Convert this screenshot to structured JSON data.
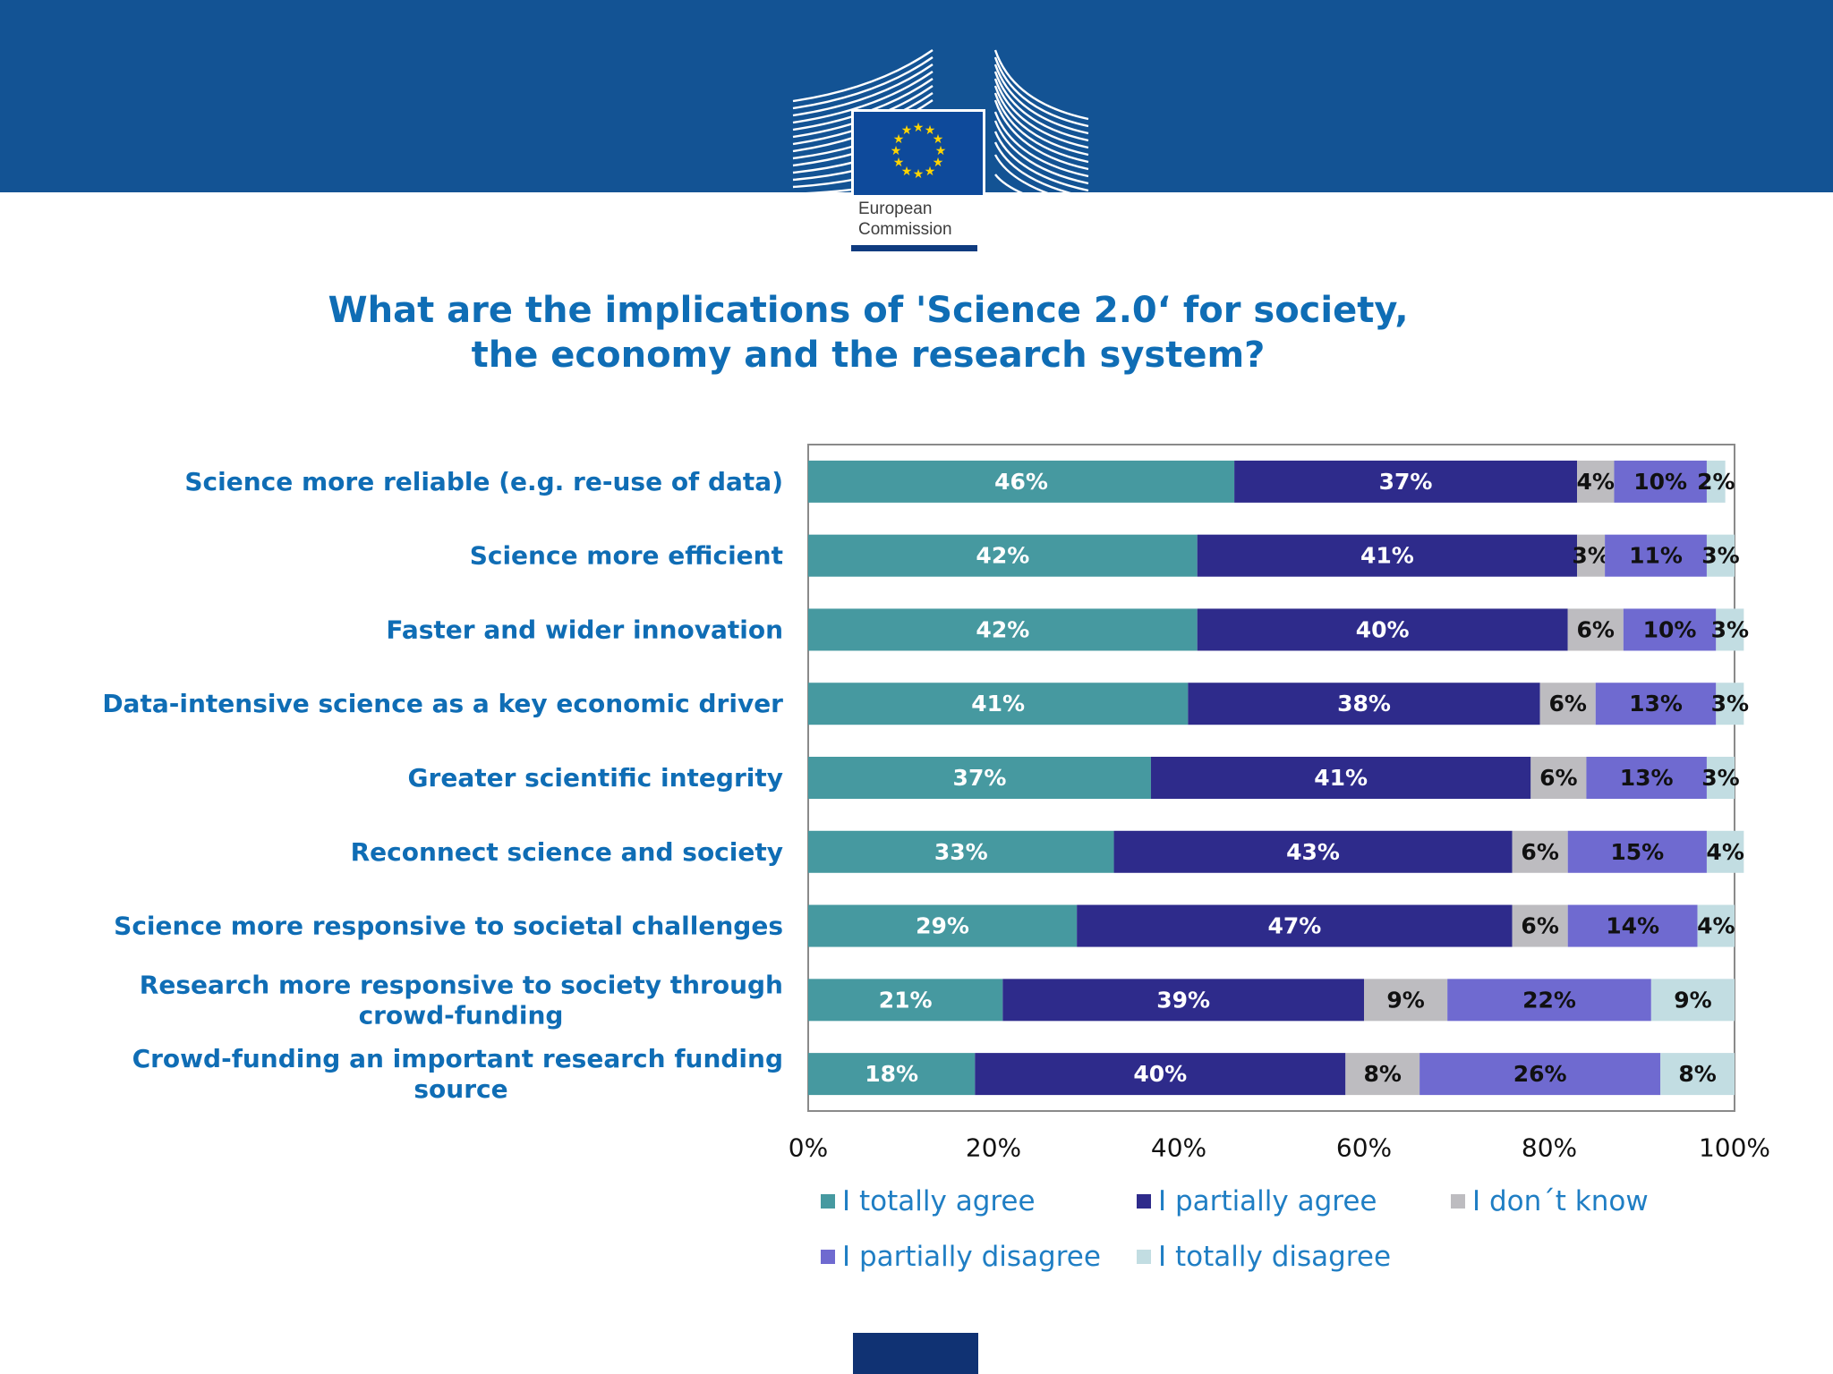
{
  "header": {
    "logo_text_line1": "European",
    "logo_text_line2": "Commission"
  },
  "title": {
    "line1": "What are the implications of 'Science 2.0‘ for society,",
    "line2": "the economy and the research system?"
  },
  "colors": {
    "band": "#135394",
    "title": "#0f6db5",
    "totally_agree": "#4699a0",
    "partially_agree": "#2e2b8b",
    "dont_know": "#bdbcc0",
    "partially_disagree": "#6f6ad0",
    "totally_disagree": "#c2dde2"
  },
  "chart_data": {
    "type": "bar",
    "orientation": "horizontal",
    "stacked": true,
    "categories": [
      [
        "Science more reliable (e.g. re-use of data)"
      ],
      [
        "Science more efficient"
      ],
      [
        "Faster and wider innovation"
      ],
      [
        "Data-intensive science as a key economic driver"
      ],
      [
        "Greater scientific integrity"
      ],
      [
        "Reconnect science and society"
      ],
      [
        "Science more responsive to societal challenges"
      ],
      [
        "Research more responsive to society through",
        "crowd-funding"
      ],
      [
        "Crowd-funding an important research funding",
        "source"
      ]
    ],
    "series": [
      {
        "name": "I totally agree",
        "color": "#4699a0",
        "label_color": "#ffffff",
        "values": [
          46,
          42,
          42,
          41,
          37,
          33,
          29,
          21,
          18
        ]
      },
      {
        "name": "I partially agree",
        "color": "#2e2b8b",
        "label_color": "#ffffff",
        "values": [
          37,
          41,
          40,
          38,
          41,
          43,
          47,
          39,
          40
        ]
      },
      {
        "name": "I don´t know",
        "color": "#bdbcc0",
        "label_color": "#111111",
        "values": [
          4,
          3,
          6,
          6,
          6,
          6,
          6,
          9,
          8
        ]
      },
      {
        "name": "I partially disagree",
        "color": "#6f6ad0",
        "label_color": "#111111",
        "values": [
          10,
          11,
          10,
          13,
          13,
          15,
          14,
          22,
          26
        ]
      },
      {
        "name": "I totally disagree",
        "color": "#c2dde2",
        "label_color": "#111111",
        "values": [
          2,
          3,
          3,
          3,
          3,
          4,
          4,
          9,
          8
        ]
      }
    ],
    "value_suffix": "%",
    "xlim": [
      0,
      100
    ],
    "xticks": [
      "0%",
      "20%",
      "40%",
      "60%",
      "80%",
      "100%"
    ],
    "legend_position": "bottom",
    "grid": false
  }
}
